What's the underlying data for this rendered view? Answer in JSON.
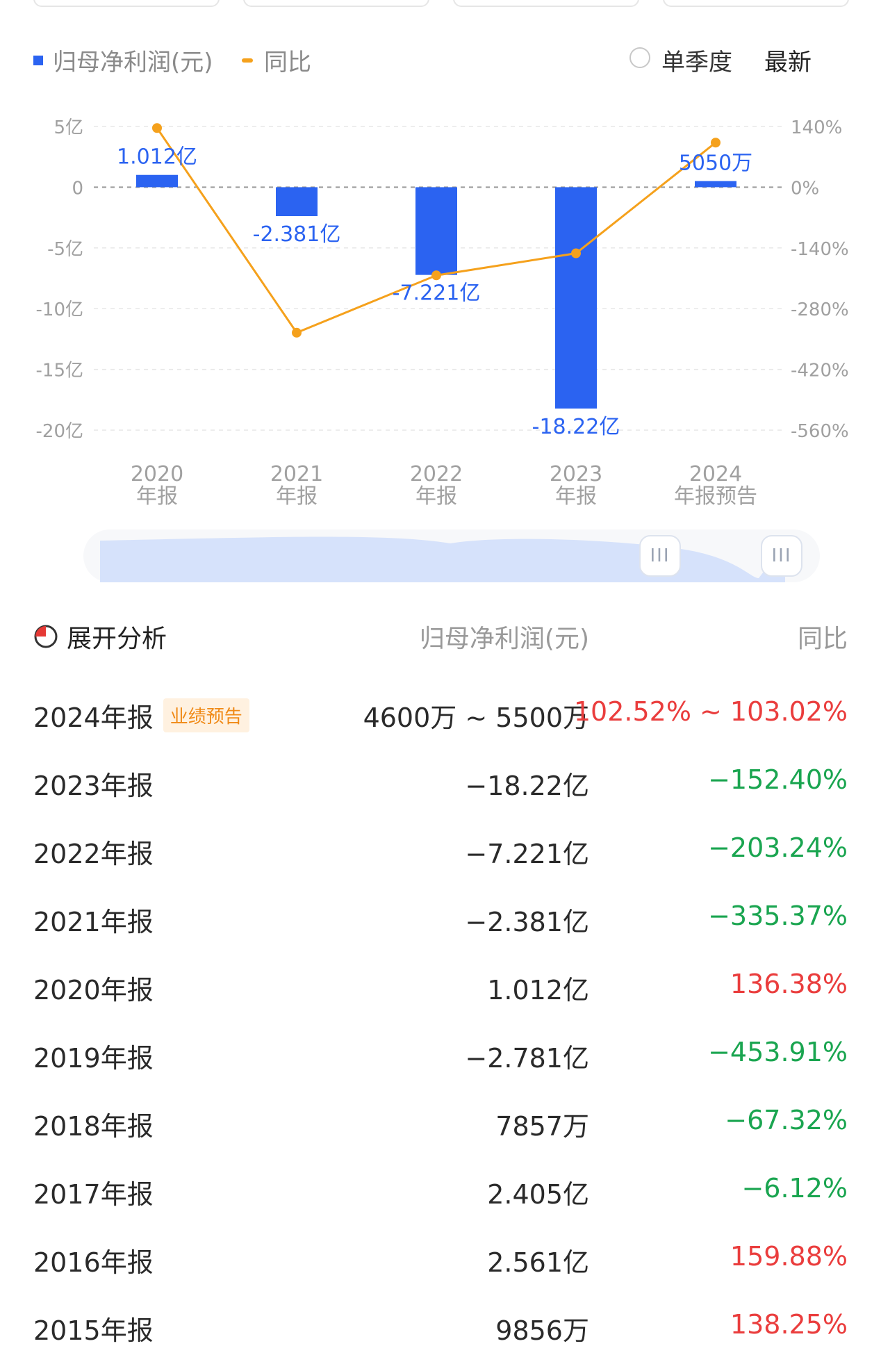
{
  "legend": {
    "series1": "归母净利润(元)",
    "series2": "同比",
    "single_quarter": "单季度",
    "latest": "最新"
  },
  "colors": {
    "bar": "#2b63f1",
    "line": "#f5a11c",
    "up": "#ea3d3d",
    "down": "#1aa550"
  },
  "chart_data": {
    "type": "bar",
    "categories": [
      [
        "2020",
        "年报"
      ],
      [
        "2021",
        "年报"
      ],
      [
        "2022",
        "年报"
      ],
      [
        "2023",
        "年报"
      ],
      [
        "2024",
        "年报预告"
      ]
    ],
    "series": [
      {
        "name": "归母净利润(元)",
        "type": "bar",
        "axis": "left",
        "values": [
          1.012,
          -2.381,
          -7.221,
          -18.22,
          0.505
        ],
        "labels": [
          "1.012亿",
          "-2.381亿",
          "-7.221亿",
          "-18.22亿",
          "5050万"
        ]
      },
      {
        "name": "同比",
        "type": "line",
        "axis": "right",
        "values": [
          136.38,
          -335.37,
          -203.24,
          -152.4,
          102.77
        ]
      }
    ],
    "y_left": {
      "ticks": [
        "5亿",
        "0",
        "-5亿",
        "-10亿",
        "-15亿",
        "-20亿"
      ],
      "values": [
        5,
        0,
        -5,
        -10,
        -15,
        -20
      ],
      "ylim": [
        -20,
        5
      ]
    },
    "y_right": {
      "ticks": [
        "140%",
        "0%",
        "-140%",
        "-280%",
        "-420%",
        "-560%"
      ],
      "values": [
        140,
        0,
        -140,
        -280,
        -420,
        -560
      ],
      "ylim": [
        -560,
        140
      ]
    },
    "grid": true
  },
  "table": {
    "expand_label": "展开分析",
    "col1": "归母净利润(元)",
    "col2": "同比",
    "rows": [
      {
        "year": "2024年报",
        "badge": "业绩预告",
        "value": "4600万 ~ 5500万",
        "yoy": "102.52% ~ 103.02%",
        "dir": "up"
      },
      {
        "year": "2023年报",
        "value": "−18.22亿",
        "yoy": "−152.40%",
        "dir": "down"
      },
      {
        "year": "2022年报",
        "value": "−7.221亿",
        "yoy": "−203.24%",
        "dir": "down"
      },
      {
        "year": "2021年报",
        "value": "−2.381亿",
        "yoy": "−335.37%",
        "dir": "down"
      },
      {
        "year": "2020年报",
        "value": "1.012亿",
        "yoy": "136.38%",
        "dir": "up"
      },
      {
        "year": "2019年报",
        "value": "−2.781亿",
        "yoy": "−453.91%",
        "dir": "down"
      },
      {
        "year": "2018年报",
        "value": "7857万",
        "yoy": "−67.32%",
        "dir": "down"
      },
      {
        "year": "2017年报",
        "value": "2.405亿",
        "yoy": "−6.12%",
        "dir": "down"
      },
      {
        "year": "2016年报",
        "value": "2.561亿",
        "yoy": "159.88%",
        "dir": "up"
      },
      {
        "year": "2015年报",
        "value": "9856万",
        "yoy": "138.25%",
        "dir": "up"
      }
    ]
  }
}
